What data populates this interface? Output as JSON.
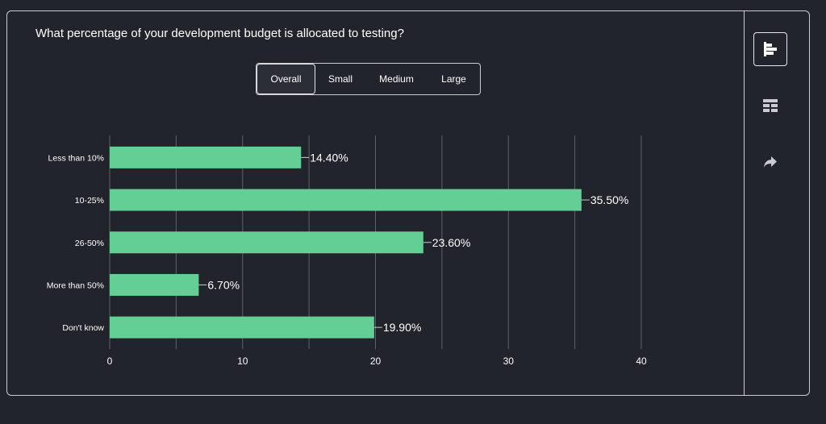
{
  "question": "What percentage of your development budget is allocated to testing?",
  "tabs": [
    {
      "label": "Overall",
      "active": true
    },
    {
      "label": "Small",
      "active": false
    },
    {
      "label": "Medium",
      "active": false
    },
    {
      "label": "Large",
      "active": false
    }
  ],
  "toolbar": {
    "icons": [
      "bar-chart-icon",
      "table-icon",
      "share-icon"
    ]
  },
  "colors": {
    "bar": "#63cf95",
    "background": "#22242c",
    "grid": "#5e6068",
    "text": "#ffffff"
  },
  "chart_data": {
    "type": "bar",
    "orientation": "horizontal",
    "categories": [
      "Less than 10%",
      "10-25%",
      "26-50%",
      "More than 50%",
      "Don't know"
    ],
    "values": [
      14.4,
      35.5,
      23.6,
      6.7,
      19.9
    ],
    "value_labels": [
      "14.40%",
      "35.50%",
      "23.60%",
      "6.70%",
      "19.90%"
    ],
    "xticks": [
      "0",
      "10",
      "20",
      "30",
      "40"
    ],
    "xlim": [
      0,
      40
    ],
    "grid": true,
    "title": "",
    "xlabel": "",
    "ylabel": ""
  }
}
